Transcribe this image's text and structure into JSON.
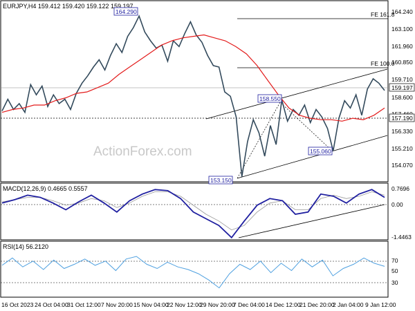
{
  "chart_data": [
    {
      "type": "candlestick",
      "header": "EURJPY,H4  159.412 159.420 159.122 159.197",
      "watermark": "ActionForex.com",
      "ylim": [
        153.0,
        165.2
      ],
      "yticks": [
        "164.240",
        "163.100",
        "161.960",
        "160.850",
        "159.710",
        "158.600",
        "157.460",
        "156.330",
        "155.210",
        "154.070"
      ],
      "current_price": "159.197",
      "current_price_value": 159.197,
      "support_level": "157.190",
      "support_level_value": 157.19,
      "fib_levels": [
        {
          "label": "FE 161.8",
          "value": 163.6
        },
        {
          "label": "FE 100.0",
          "value": 160.4
        }
      ],
      "annotations": [
        {
          "label": "164.290",
          "value": 164.29
        },
        {
          "label": "158.550",
          "value": 158.55
        },
        {
          "label": "155.060",
          "value": 155.06
        },
        {
          "label": "153.150",
          "value": 153.15
        }
      ],
      "price_path": [
        157.8,
        158.6,
        157.9,
        158.3,
        157.7,
        159.6,
        158.9,
        159.5,
        158.1,
        158.9,
        158.3,
        158.6,
        157.9,
        159.0,
        159.7,
        160.2,
        160.8,
        161.3,
        160.6,
        161.6,
        162.4,
        161.8,
        162.9,
        163.5,
        164.29,
        163.2,
        162.6,
        162.1,
        162.3,
        161.2,
        162.6,
        162.2,
        163.1,
        163.9,
        163.0,
        162.5,
        161.6,
        160.9,
        160.8,
        159.1,
        158.8,
        157.4,
        153.3,
        155.7,
        157.2,
        156.3,
        154.7,
        156.8,
        155.5,
        158.55,
        157.1,
        157.9,
        157.5,
        158.2,
        157.0,
        157.9,
        157.4,
        156.6,
        155.06,
        157.3,
        158.5,
        158.0,
        158.9,
        157.5,
        159.3,
        160.0,
        159.7,
        159.2
      ],
      "ma_path": [
        157.7,
        157.9,
        158.0,
        158.2,
        158.2,
        158.5,
        158.7,
        159.0,
        159.1,
        159.4,
        159.7,
        160.3,
        160.8,
        161.3,
        161.8,
        162.3,
        162.6,
        162.8,
        162.9,
        163.0,
        162.8,
        162.6,
        162.2,
        161.7,
        160.9,
        159.9,
        158.9,
        158.0,
        157.5,
        157.3,
        157.2,
        157.2,
        157.1,
        157.3,
        157.2,
        157.5,
        158.0
      ]
    },
    {
      "type": "line",
      "title": "MACD(12,26,9) 0.4665 0.5557",
      "ylim": [
        -1.4463,
        0.7696
      ],
      "yticks": [
        "0.7696",
        "0.00",
        "-1.4463"
      ],
      "macd_path": [
        0.1,
        0.25,
        0.45,
        0.35,
        0.1,
        -0.2,
        0.15,
        0.45,
        0.1,
        -0.3,
        0.2,
        0.5,
        0.7,
        0.65,
        0.3,
        -0.3,
        -0.6,
        -0.9,
        -1.44,
        -0.7,
        0.0,
        0.3,
        0.2,
        -0.4,
        -0.3,
        0.5,
        0.4,
        0.1,
        0.5,
        0.7,
        0.35
      ],
      "signal_path": [
        0.15,
        0.25,
        0.35,
        0.35,
        0.2,
        0.0,
        0.1,
        0.3,
        0.2,
        -0.1,
        0.1,
        0.4,
        0.6,
        0.6,
        0.4,
        0.0,
        -0.4,
        -0.7,
        -1.1,
        -0.9,
        -0.3,
        0.1,
        0.2,
        -0.2,
        -0.2,
        0.3,
        0.45,
        0.3,
        0.4,
        0.6,
        0.45
      ]
    },
    {
      "type": "line",
      "title": "RSI(14) 56.2120",
      "ylim": [
        0,
        100
      ],
      "yticks": [
        "70",
        "50",
        "30"
      ],
      "rsi_path": [
        58,
        72,
        55,
        66,
        50,
        68,
        52,
        60,
        70,
        58,
        66,
        48,
        70,
        75,
        60,
        52,
        64,
        55,
        50,
        42,
        30,
        15,
        42,
        60,
        50,
        66,
        44,
        62,
        48,
        70,
        55,
        68,
        38,
        52,
        60,
        72,
        62,
        56
      ]
    }
  ],
  "x_axis": {
    "tick_labels": [
      "16 Oct 2023",
      "24 Oct 04:00",
      "31 Oct 12:00",
      "7 Nov 20:00",
      "15 Nov 04:00",
      "22 Nov 12:00",
      "29 Nov 20:00",
      "7 Dec 04:00",
      "14 Dec 12:00",
      "21 Dec 20:00",
      "2 Jan 04:00",
      "9 Jan 12:00"
    ]
  },
  "colors": {
    "candles": "#334a5c",
    "ma": "#e31b1b",
    "macd": "#1f1fa0",
    "rsi": "#4ea0e0",
    "lines": "#000000",
    "annotation_border": "#1f1fa0"
  }
}
